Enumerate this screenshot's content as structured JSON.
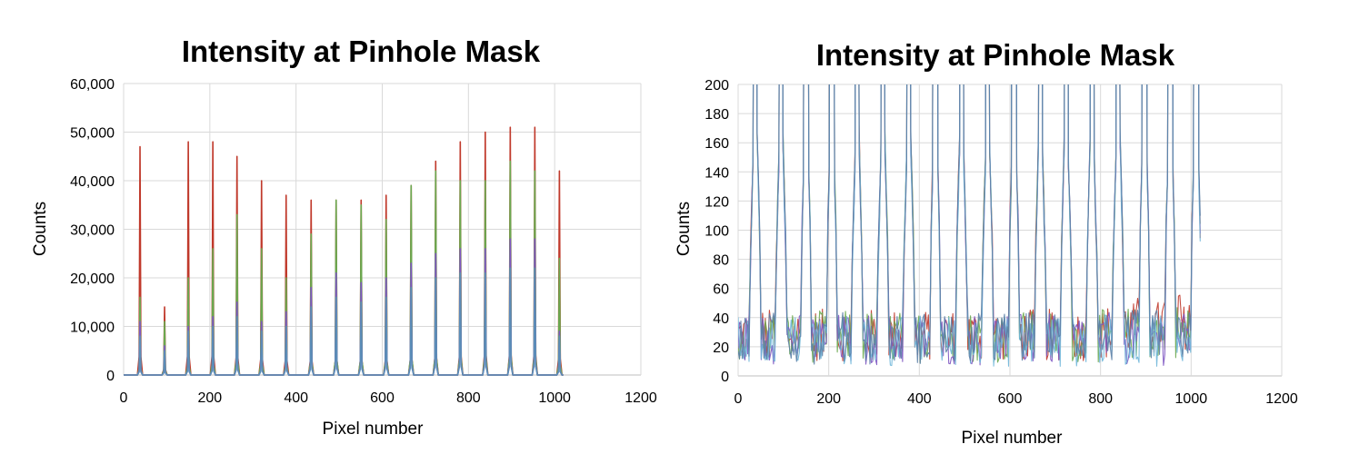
{
  "chart_data": [
    {
      "type": "line",
      "title": "Intensity at Pinhole Mask",
      "xlabel": "Pixel number",
      "ylabel": "Counts",
      "xlim": [
        0,
        1200
      ],
      "ylim": [
        0,
        60000
      ],
      "xticks": [
        0,
        200,
        400,
        600,
        800,
        1000,
        1200
      ],
      "yticks": [
        0,
        10000,
        20000,
        30000,
        40000,
        50000,
        60000
      ],
      "xtick_labels": [
        "0",
        "200",
        "400",
        "600",
        "800",
        "1000",
        "1200"
      ],
      "ytick_labels": [
        "0",
        "10,000",
        "20,000",
        "30,000",
        "40,000",
        "50,000",
        "60,000"
      ],
      "grid": true,
      "peak_positions": [
        38,
        95,
        150,
        207,
        263,
        320,
        377,
        435,
        493,
        551,
        609,
        667,
        724,
        781,
        839,
        897,
        954,
        1011
      ],
      "series": [
        {
          "color": "#c0392b",
          "peaks": [
            47000,
            14000,
            48000,
            48000,
            45000,
            40000,
            37000,
            36000,
            36000,
            36000,
            37000,
            39000,
            44000,
            48000,
            50000,
            51000,
            51000,
            42000
          ]
        },
        {
          "color": "#6aa84f",
          "peaks": [
            16000,
            11000,
            20000,
            26000,
            33000,
            26000,
            20000,
            29000,
            36000,
            35000,
            32000,
            39000,
            42000,
            40000,
            40000,
            44000,
            42000,
            24000
          ]
        },
        {
          "color": "#7e57c2",
          "peaks": [
            11000,
            6000,
            10000,
            12000,
            15000,
            11000,
            13000,
            18000,
            21000,
            19000,
            20000,
            23000,
            25000,
            26000,
            26000,
            28000,
            28000,
            9000
          ]
        },
        {
          "color": "#5b8db8",
          "peaks": [
            8000,
            5000,
            9000,
            10000,
            12000,
            9000,
            10000,
            14000,
            16000,
            15000,
            16000,
            18000,
            20000,
            21000,
            21000,
            22000,
            22000,
            8000
          ]
        }
      ]
    },
    {
      "type": "line",
      "title": "Intensity at Pinhole Mask",
      "xlabel": "Pixel number",
      "ylabel": "Counts",
      "xlim": [
        0,
        1200
      ],
      "ylim": [
        0,
        200
      ],
      "xticks": [
        0,
        200,
        400,
        600,
        800,
        1000,
        1200
      ],
      "yticks": [
        0,
        20,
        40,
        60,
        80,
        100,
        120,
        140,
        160,
        180,
        200
      ],
      "xtick_labels": [
        "0",
        "200",
        "400",
        "600",
        "800",
        "1000",
        "1200"
      ],
      "ytick_labels": [
        "0",
        "20",
        "40",
        "60",
        "80",
        "100",
        "120",
        "140",
        "160",
        "180",
        "200"
      ],
      "grid": true,
      "peak_positions": [
        38,
        95,
        150,
        207,
        263,
        320,
        377,
        435,
        493,
        551,
        609,
        667,
        724,
        781,
        839,
        897,
        954,
        1011
      ],
      "noise_floor_range": [
        0,
        45
      ],
      "series": [
        {
          "color": "#c0392b",
          "baseline": 28
        },
        {
          "color": "#6aa84f",
          "baseline": 27
        },
        {
          "color": "#7e57c2",
          "baseline": 25
        },
        {
          "color": "#6fb6d9",
          "baseline": 24
        },
        {
          "color": "#5b7fa6",
          "baseline": 26
        }
      ]
    }
  ]
}
